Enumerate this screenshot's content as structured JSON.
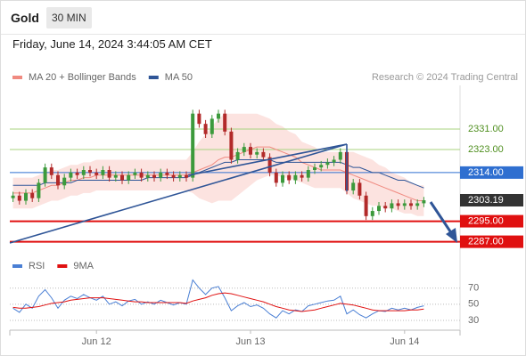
{
  "header": {
    "symbol": "Gold",
    "interval": "30 MIN",
    "datetime": "Friday, June 14, 2024 3:44:05 AM CET"
  },
  "chart_data": [
    {
      "type": "candlestick",
      "credit": "Research © 2024 Trading Central",
      "up_color": "#3c9a3c",
      "down_color": "#b22a2a",
      "ylim": [
        2282,
        2348
      ],
      "open": [
        2304,
        2305,
        2303,
        2306,
        2304,
        2310,
        2316,
        2313,
        2309,
        2312,
        2314,
        2313,
        2315,
        2314,
        2313,
        2315,
        2312,
        2313,
        2311,
        2313,
        2314,
        2312,
        2313,
        2312,
        2314,
        2313,
        2312,
        2313,
        2312,
        2337,
        2333,
        2329,
        2335,
        2337,
        2330,
        2319,
        2322,
        2324,
        2321,
        2322,
        2320,
        2314,
        2310,
        2313,
        2311,
        2313,
        2312,
        2315,
        2316,
        2317,
        2318,
        2319,
        2322,
        2307,
        2310,
        2305,
        2297,
        2299,
        2301,
        2300,
        2302,
        2301,
        2302,
        2301,
        2302
      ],
      "high": [
        2306.5,
        2306.5,
        2307.5,
        2307.5,
        2311.5,
        2317.5,
        2317.5,
        2314.5,
        2313.5,
        2315.5,
        2315.5,
        2316.5,
        2316.5,
        2315.5,
        2316.5,
        2316.5,
        2314.5,
        2314.5,
        2314.5,
        2315.5,
        2315.5,
        2314.5,
        2314.5,
        2315.5,
        2315.5,
        2314.5,
        2314.5,
        2314.5,
        2338.5,
        2338.5,
        2334.5,
        2336.5,
        2338.5,
        2338.5,
        2331.5,
        2323.5,
        2325.5,
        2325.5,
        2323.5,
        2323.5,
        2321.5,
        2315.5,
        2314.5,
        2314.5,
        2314.5,
        2314.5,
        2316.5,
        2317.5,
        2318.5,
        2319.5,
        2320.5,
        2323.5,
        2323.5,
        2311.5,
        2311.5,
        2306.5,
        2300.5,
        2302.5,
        2302.5,
        2303.5,
        2303.5,
        2303.5,
        2303.5,
        2303.5,
        2304.5
      ],
      "low": [
        2302.5,
        2301.5,
        2301.5,
        2302.5,
        2302.5,
        2308.5,
        2311.5,
        2307.5,
        2307.5,
        2310.5,
        2311.5,
        2311.5,
        2312.5,
        2311.5,
        2311.5,
        2310.5,
        2310.5,
        2309.5,
        2309.5,
        2311.5,
        2310.5,
        2310.5,
        2310.5,
        2310.5,
        2311.5,
        2310.5,
        2310.5,
        2310.5,
        2310.5,
        2331.5,
        2327.5,
        2327.5,
        2333.5,
        2328.5,
        2317.5,
        2317.5,
        2320.5,
        2319.5,
        2319.5,
        2318.5,
        2312.5,
        2308.5,
        2308.5,
        2309.5,
        2309.5,
        2310.5,
        2310.5,
        2313.5,
        2314.5,
        2315.5,
        2316.5,
        2317.5,
        2305.5,
        2305.5,
        2303.5,
        2295.5,
        2295.5,
        2297.5,
        2298.5,
        2298.5,
        2299.5,
        2299.5,
        2299.5,
        2299.5,
        2300.5
      ],
      "close": [
        2305,
        2303,
        2306,
        2304,
        2310,
        2316,
        2313,
        2309,
        2312,
        2314,
        2313,
        2315,
        2314,
        2313,
        2315,
        2312,
        2313,
        2311,
        2313,
        2314,
        2312,
        2313,
        2312,
        2314,
        2313,
        2312,
        2313,
        2312,
        2337,
        2333,
        2329,
        2335,
        2337,
        2330,
        2319,
        2322,
        2324,
        2321,
        2322,
        2320,
        2314,
        2310,
        2313,
        2311,
        2313,
        2312,
        2315,
        2316,
        2317,
        2318,
        2319,
        2322,
        2307,
        2310,
        2305,
        2297,
        2299,
        2301,
        2300,
        2302,
        2301,
        2302,
        2301,
        2302,
        2303.19
      ],
      "series": [
        {
          "name": "MA 20 + Bollinger Bands",
          "color": "#f08a80",
          "band_color": "#fbd9d6",
          "values": [
            2306,
            2306,
            2306,
            2306,
            2307,
            2308,
            2309,
            2309,
            2310,
            2311,
            2311,
            2312,
            2312,
            2313,
            2313,
            2313,
            2313,
            2313,
            2313,
            2313,
            2313,
            2313,
            2313,
            2313,
            2313,
            2313,
            2313,
            2313,
            2314,
            2315,
            2316,
            2317,
            2319,
            2320,
            2320,
            2321,
            2322,
            2323,
            2324,
            2324,
            2324,
            2323,
            2322,
            2321,
            2320,
            2318,
            2317,
            2316,
            2315,
            2315,
            2315,
            2315,
            2314,
            2313,
            2312,
            2311,
            2310,
            2309,
            2308,
            2307,
            2306,
            2305,
            2304,
            2303,
            2303
          ],
          "upper": [
            2312,
            2312,
            2312,
            2312,
            2313,
            2314,
            2315,
            2315,
            2316,
            2317,
            2317,
            2318,
            2318,
            2319,
            2319,
            2319,
            2319,
            2319,
            2319,
            2319,
            2319,
            2319,
            2319,
            2319,
            2319,
            2319,
            2319,
            2319,
            2322,
            2326,
            2329,
            2332,
            2335,
            2337,
            2337,
            2337,
            2337,
            2337,
            2337,
            2336,
            2335,
            2333,
            2332,
            2330,
            2329,
            2326,
            2325,
            2324,
            2322,
            2322,
            2322,
            2322,
            2322,
            2322,
            2321,
            2320,
            2319,
            2317,
            2316,
            2314,
            2313,
            2312,
            2310,
            2309,
            2309
          ],
          "lower": [
            2300,
            2300,
            2300,
            2300,
            2301,
            2302,
            2303,
            2303,
            2304,
            2305,
            2305,
            2306,
            2306,
            2307,
            2307,
            2307,
            2307,
            2307,
            2307,
            2307,
            2307,
            2307,
            2307,
            2307,
            2307,
            2307,
            2307,
            2307,
            2306,
            2304,
            2303,
            2302,
            2303,
            2303,
            2303,
            2305,
            2307,
            2309,
            2311,
            2312,
            2313,
            2313,
            2312,
            2312,
            2311,
            2310,
            2309,
            2308,
            2308,
            2308,
            2308,
            2308,
            2306,
            2304,
            2303,
            2302,
            2301,
            2301,
            2300,
            2300,
            2299,
            2298,
            2298,
            2297,
            2297
          ]
        },
        {
          "name": "MA 50",
          "color": "#2f5597",
          "values": [
            2309,
            2309,
            2309,
            2309,
            2309,
            2310,
            2310,
            2310,
            2310,
            2310,
            2311,
            2311,
            2311,
            2311,
            2311,
            2311,
            2311,
            2311,
            2311,
            2311,
            2311,
            2312,
            2312,
            2312,
            2312,
            2312,
            2312,
            2312,
            2313,
            2314,
            2315,
            2316,
            2317,
            2318,
            2318,
            2319,
            2319,
            2319,
            2319,
            2319,
            2319,
            2318,
            2318,
            2318,
            2318,
            2318,
            2318,
            2318,
            2318,
            2318,
            2318,
            2318,
            2317,
            2316,
            2316,
            2315,
            2314,
            2314,
            2313,
            2312,
            2311,
            2311,
            2310,
            2309,
            2308
          ]
        }
      ],
      "levels": [
        {
          "value": 2331,
          "label": "2331.00",
          "color": "#a8d37f",
          "text_color": "#4f8f1f",
          "boxed": false
        },
        {
          "value": 2323,
          "label": "2323.00",
          "color": "#a8d37f",
          "text_color": "#4f8f1f",
          "boxed": false
        },
        {
          "value": 2314,
          "label": "2314.00",
          "color": "#2f6fd0",
          "text_color": "#ffffff",
          "boxed": true
        },
        {
          "value": 2295,
          "label": "2295.00",
          "color": "#e01010",
          "text_color": "#ffffff",
          "boxed": true
        },
        {
          "value": 2287,
          "label": "2287.00",
          "color": "#e01010",
          "text_color": "#ffffff",
          "boxed": true
        }
      ]
    },
    {
      "type": "line",
      "categories": [
        null,
        null,
        null,
        null,
        null,
        null,
        null,
        null,
        null,
        null,
        null,
        null,
        null,
        "Jun 12",
        null,
        null,
        null,
        null,
        null,
        null,
        null,
        null,
        null,
        null,
        null,
        null,
        null,
        null,
        null,
        null,
        null,
        null,
        null,
        null,
        null,
        null,
        null,
        "Jun 13",
        null,
        null,
        null,
        null,
        null,
        null,
        null,
        null,
        null,
        null,
        null,
        null,
        null,
        null,
        null,
        null,
        null,
        null,
        null,
        null,
        null,
        null,
        null,
        "Jun 14",
        null,
        null,
        null
      ],
      "ylim": [
        20,
        84
      ],
      "yticks": [
        30,
        50,
        70
      ],
      "grid": true,
      "series": [
        {
          "name": "RSI",
          "color": "#4a7fd4",
          "values": [
            45,
            40,
            50,
            45,
            60,
            68,
            58,
            45,
            55,
            60,
            57,
            62,
            58,
            55,
            60,
            50,
            53,
            48,
            54,
            56,
            50,
            53,
            50,
            55,
            52,
            49,
            52,
            50,
            80,
            70,
            62,
            70,
            72,
            58,
            42,
            48,
            52,
            47,
            49,
            45,
            38,
            33,
            42,
            38,
            43,
            41,
            48,
            50,
            52,
            54,
            55,
            60,
            38,
            43,
            37,
            33,
            38,
            42,
            41,
            45,
            43,
            45,
            43,
            46,
            48
          ]
        },
        {
          "name": "9MA",
          "color": "#e01010",
          "values": [
            46,
            45,
            45,
            46,
            47,
            49,
            51,
            52,
            53,
            55,
            56,
            57,
            58,
            58,
            58,
            57,
            56,
            55,
            54,
            53,
            53,
            52,
            52,
            52,
            52,
            52,
            52,
            51,
            54,
            56,
            58,
            61,
            63,
            64,
            63,
            61,
            59,
            57,
            55,
            53,
            50,
            47,
            45,
            43,
            42,
            41,
            42,
            43,
            45,
            47,
            49,
            51,
            50,
            49,
            47,
            45,
            43,
            42,
            42,
            42,
            42,
            42,
            43,
            43,
            44
          ]
        }
      ]
    }
  ]
}
